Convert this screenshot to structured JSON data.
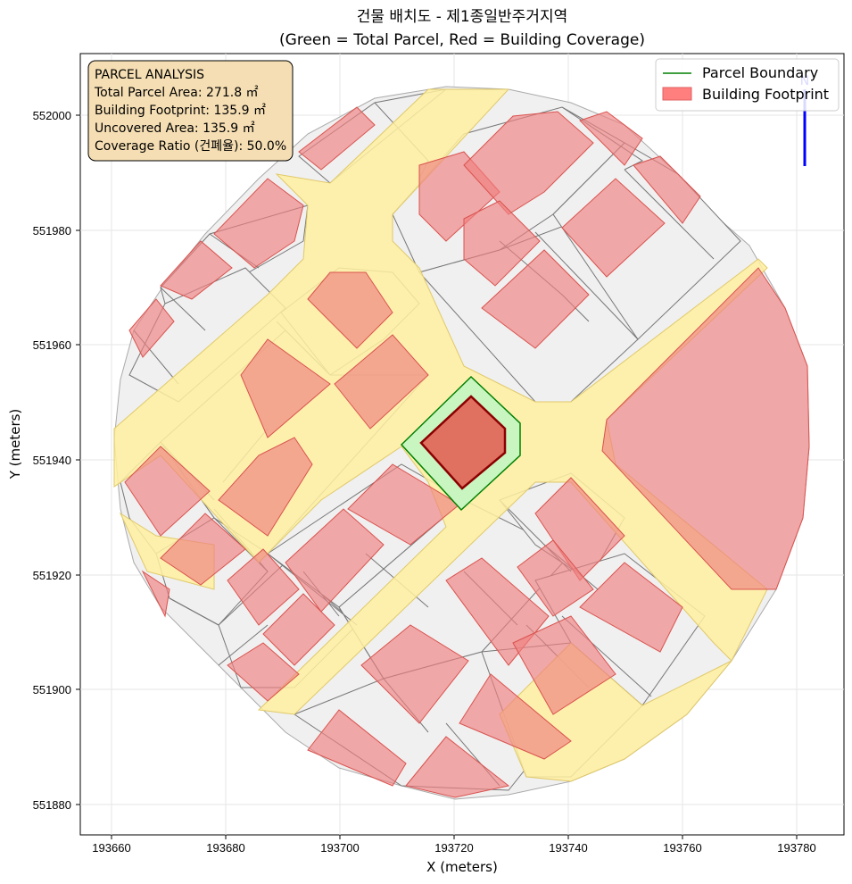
{
  "title_line1": "건물 배치도 - 제1종일반주거지역",
  "title_line2": "(Green = Total Parcel, Red = Building Coverage)",
  "xlabel": "X (meters)",
  "ylabel": "Y (meters)",
  "x_ticks": [
    "193660",
    "193680",
    "193700",
    "193720",
    "193740",
    "193760",
    "193780"
  ],
  "y_ticks": [
    "552000",
    "551980",
    "551960",
    "551940",
    "551920",
    "551900",
    "551880"
  ],
  "legend": {
    "items": [
      {
        "label": "Parcel Boundary",
        "color": "#008000"
      },
      {
        "label": "Building Footprint",
        "color": "#ff7f7f"
      }
    ],
    "placement": "top-right"
  },
  "info_box": {
    "heading": "PARCEL ANALYSIS",
    "line1": "Total Parcel Area: 271.8 ㎡",
    "line2": "Building Footprint: 135.9 ㎡",
    "line3": "Uncovered Area: 135.9 ㎡",
    "line4": "Coverage Ratio (건폐율): 50.0%"
  },
  "north_arrow_label": "N",
  "colors": {
    "parcel_outline": "#008000",
    "parcel_fill": "#c8f5c0",
    "building_highlight": "#e07060",
    "building_outline": "#8b0000",
    "road": "#fff0a0",
    "info_box": "#f5deb3",
    "north_arrow": "#0000ff"
  },
  "chart_data": {
    "type": "map",
    "xlim": [
      193655,
      193788
    ],
    "ylim": [
      551875,
      552011
    ],
    "grid": true,
    "subject_parcel": {
      "total_area_m2": 271.8,
      "building_footprint_m2": 135.9,
      "uncovered_area_m2": 135.9,
      "coverage_ratio_pct": 50.0
    }
  }
}
